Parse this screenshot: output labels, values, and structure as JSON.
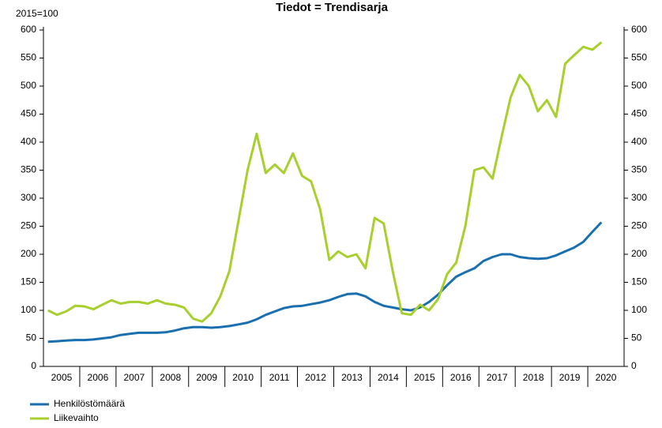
{
  "chart_data": {
    "type": "line",
    "title": "Tiedot = Trendisarja",
    "unit_label": "2015=100",
    "categories": [
      "2005",
      null,
      null,
      null,
      "2006",
      null,
      null,
      null,
      "2007",
      null,
      null,
      null,
      "2008",
      null,
      null,
      null,
      "2009",
      null,
      null,
      null,
      "2010",
      null,
      null,
      null,
      "2011",
      null,
      null,
      null,
      "2012",
      null,
      null,
      null,
      "2013",
      null,
      null,
      null,
      "2014",
      null,
      null,
      null,
      "2015",
      null,
      null,
      null,
      "2016",
      null,
      null,
      null,
      "2017",
      null,
      null,
      null,
      "2018",
      null,
      null,
      null,
      "2019",
      null,
      null,
      null,
      "2020",
      null,
      null,
      null
    ],
    "series": [
      {
        "name": "Henkilöstömäärä",
        "color": "#1a6faf",
        "values": [
          44,
          45,
          46,
          47,
          47,
          48,
          50,
          52,
          56,
          58,
          60,
          60,
          60,
          61,
          64,
          68,
          70,
          70,
          69,
          70,
          72,
          75,
          78,
          84,
          92,
          98,
          104,
          107,
          108,
          111,
          114,
          118,
          124,
          129,
          130,
          125,
          115,
          108,
          105,
          102,
          100,
          105,
          115,
          128,
          145,
          160,
          168,
          175,
          188,
          195,
          200,
          200,
          195,
          193,
          192,
          193,
          198,
          205,
          212,
          222,
          240,
          257,
          null,
          null
        ]
      },
      {
        "name": "Liikevaihto",
        "color": "#a7cf2e",
        "values": [
          100,
          92,
          98,
          108,
          107,
          102,
          110,
          118,
          112,
          115,
          115,
          112,
          118,
          112,
          110,
          105,
          85,
          80,
          95,
          125,
          170,
          260,
          350,
          415,
          345,
          360,
          345,
          380,
          340,
          330,
          280,
          190,
          205,
          195,
          200,
          175,
          265,
          255,
          170,
          95,
          92,
          110,
          100,
          120,
          165,
          185,
          250,
          350,
          355,
          335,
          410,
          480,
          520,
          500,
          455,
          475,
          445,
          540,
          555,
          570,
          565,
          578,
          null,
          null
        ]
      }
    ],
    "ylim": [
      0,
      600
    ],
    "yticks": [
      0,
      50,
      100,
      150,
      200,
      250,
      300,
      350,
      400,
      450,
      500,
      550,
      600
    ],
    "y2lim": [
      0,
      600
    ],
    "y2ticks": [
      0,
      50,
      100,
      150,
      200,
      250,
      300,
      350,
      400,
      450,
      500,
      550,
      600
    ],
    "grid": false
  }
}
